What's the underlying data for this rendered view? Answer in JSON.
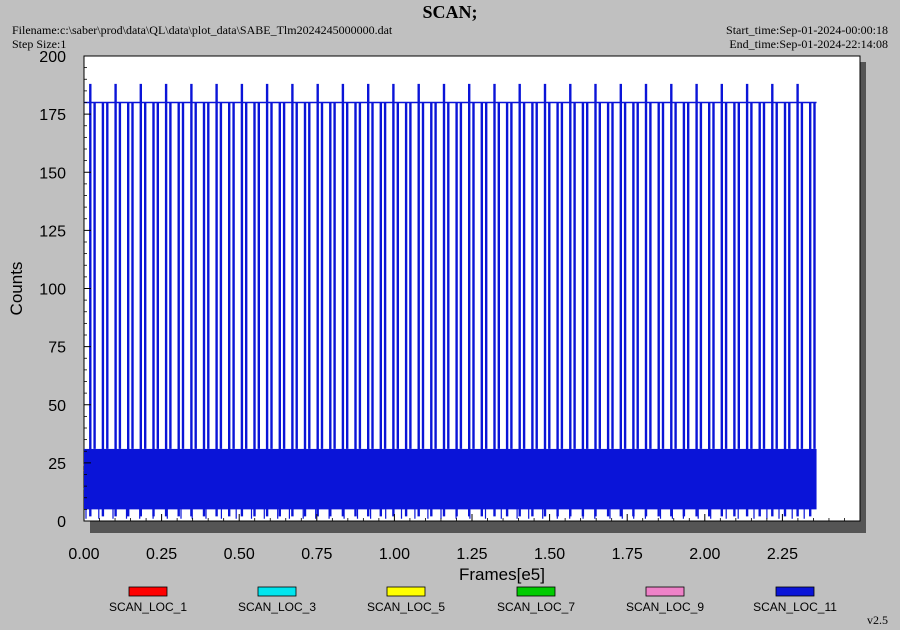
{
  "header": {
    "title": "SCAN;",
    "filename": "Filename:c:\\saber\\prod\\data\\QL\\data\\plot_data\\SABE_Tlm2024245000000.dat",
    "step_size": "Step Size:1",
    "start_time": "Start_time:Sep-01-2024-00:00:18",
    "end_time": "End_time:Sep-01-2024-22:14:08"
  },
  "footer": {
    "version": "v2.5"
  },
  "chart_data": {
    "type": "line",
    "title": "SCAN;",
    "xlabel": "Frames[e5]",
    "ylabel": "Counts",
    "xlim": [
      0,
      2.5
    ],
    "ylim": [
      0,
      200
    ],
    "x_ticks": [
      "0.00",
      "0.25",
      "0.50",
      "0.75",
      "1.00",
      "1.25",
      "1.50",
      "1.75",
      "2.00",
      "2.25"
    ],
    "y_ticks": [
      "0",
      "25",
      "50",
      "75",
      "100",
      "125",
      "150",
      "175",
      "200"
    ],
    "legend_position": "bottom",
    "series": [
      {
        "name": "SCAN_LOC_1",
        "color": "#ff0000",
        "x_range": [
          0,
          2.36
        ],
        "band": [
          10,
          28
        ]
      },
      {
        "name": "SCAN_LOC_3",
        "color": "#00e5ee",
        "x_range": [
          0,
          2.36
        ],
        "band": [
          10,
          28
        ]
      },
      {
        "name": "SCAN_LOC_5",
        "color": "#ffff00",
        "x_range": [
          0,
          2.36
        ],
        "band": [
          10,
          28
        ]
      },
      {
        "name": "SCAN_LOC_7",
        "color": "#00cc00",
        "x_range": [
          0,
          2.36
        ],
        "band": [
          10,
          28
        ]
      },
      {
        "name": "SCAN_LOC_9",
        "color": "#ee82c8",
        "x_range": [
          0,
          2.36
        ],
        "band": [
          10,
          28
        ]
      },
      {
        "name": "SCAN_LOC_11",
        "color": "#0a14d8",
        "x_range": [
          0,
          2.36
        ],
        "band": [
          5,
          31
        ],
        "spike_peaks": [
          180,
          188
        ],
        "spike_count": 58
      }
    ]
  }
}
